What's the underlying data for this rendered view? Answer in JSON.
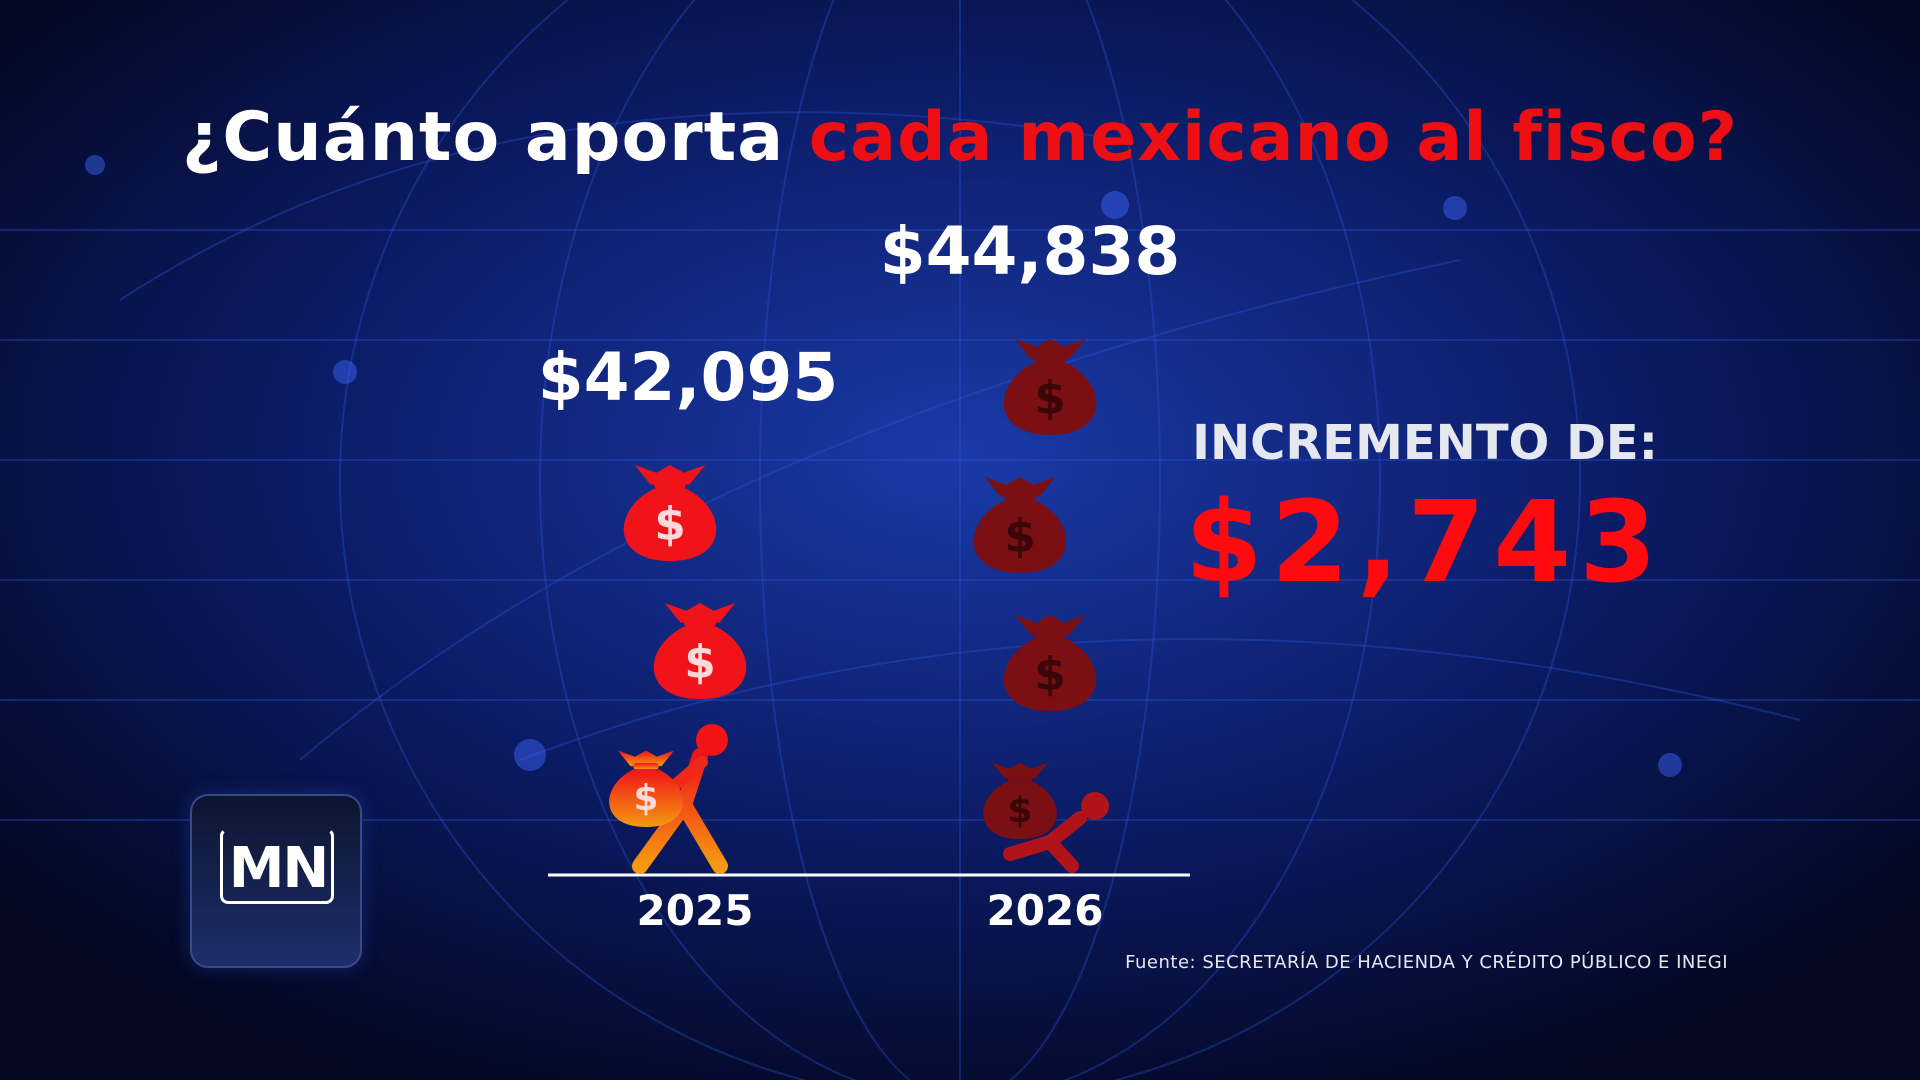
{
  "title": {
    "prefix": "¿Cuánto aporta ",
    "highlight": "cada mexicano al fisco?"
  },
  "chart_data": {
    "type": "bar",
    "categories": [
      "2025",
      "2026"
    ],
    "values": [
      42095,
      44838
    ],
    "value_labels": [
      "$42,095",
      "$44,838"
    ],
    "title": "¿Cuánto aporta cada mexicano al fisco?",
    "bags": [
      3,
      4
    ]
  },
  "increment": {
    "label": "INCREMENTO DE:",
    "value": "$2,743"
  },
  "source": "Fuente: SECRETARÍA DE HACIENDA Y CRÉDITO PÚBLICO E INEGI",
  "logo": {
    "text": "MN"
  },
  "colors": {
    "accent": "#ee0f14",
    "background": "#050b2e",
    "bag_2025": "#f0141a",
    "bag_2026": "#7a0f14"
  }
}
